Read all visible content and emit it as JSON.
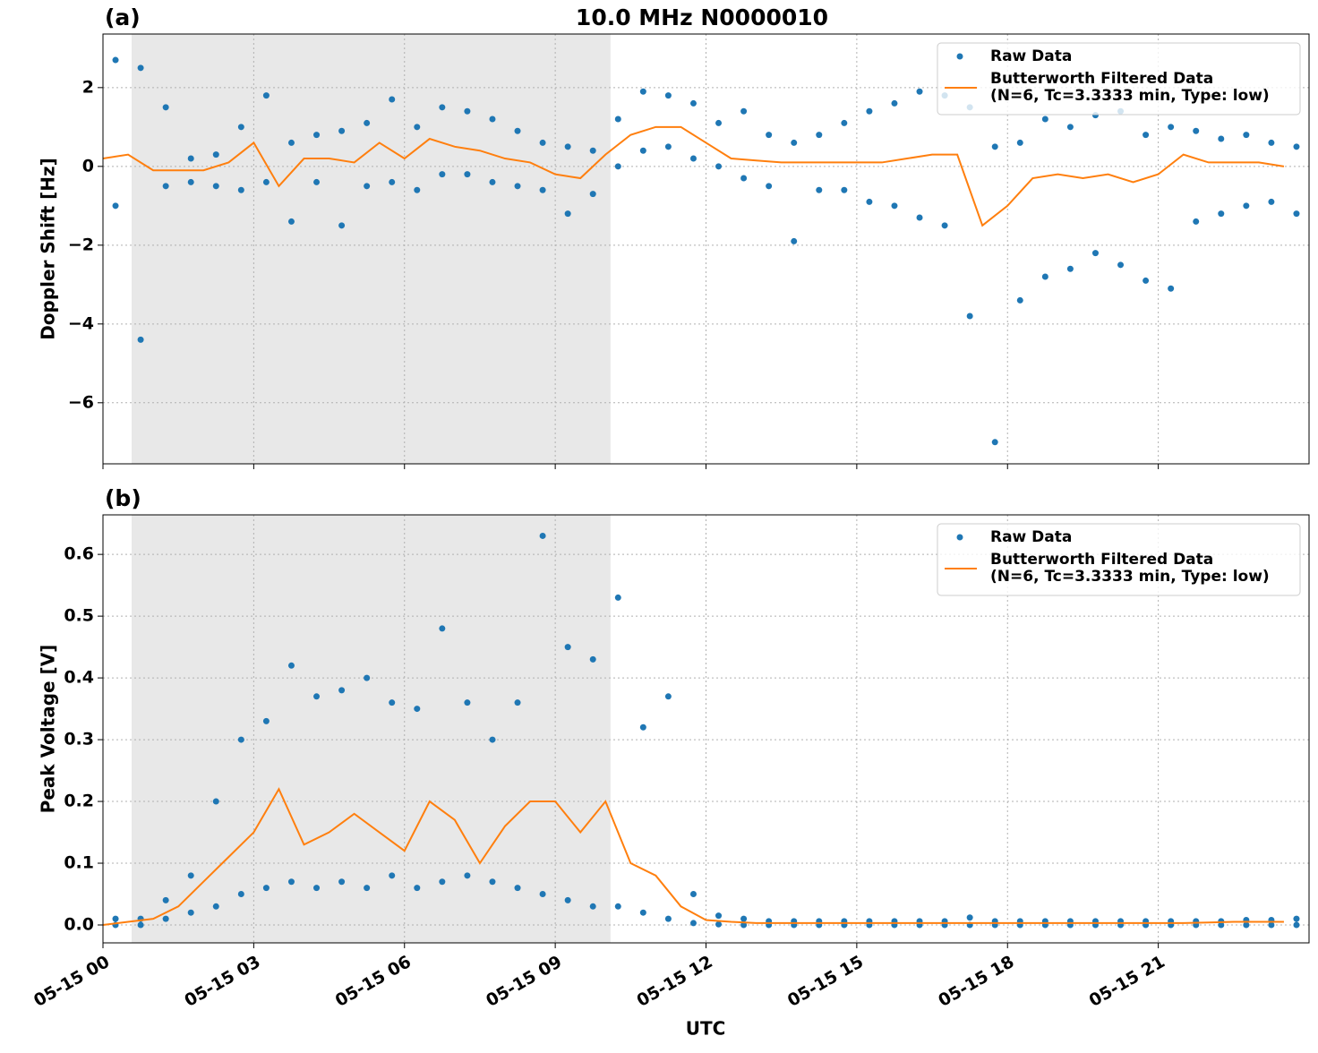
{
  "chart_data": [
    {
      "type": "line",
      "panel_label": "(a)",
      "title": "10.0 MHz N0000010",
      "ylabel": "Doppler Shift [Hz]",
      "xlim": [
        0,
        24
      ],
      "xticks": [
        0,
        3,
        6,
        9,
        12,
        15,
        18,
        21
      ],
      "show_xticklabels": false,
      "ylim": [
        -7.55,
        3.36
      ],
      "yticks": [
        {
          "value": -6,
          "label": "−6"
        },
        {
          "value": -4,
          "label": "−4"
        },
        {
          "value": -2,
          "label": "−2"
        },
        0,
        2
      ],
      "grid": true,
      "legend": "upper right",
      "shade": [
        0.57,
        10.1
      ],
      "shade_color": "#e8e8e8",
      "series": [
        {
          "name": [
            "Raw Data"
          ],
          "color": "#1f77b4",
          "mode": "markers",
          "x": [
            0.25,
            0.25,
            0.75,
            0.75,
            1.25,
            1.25,
            1.75,
            1.75,
            2.25,
            2.25,
            2.75,
            2.75,
            3.25,
            3.25,
            3.75,
            3.75,
            4.25,
            4.25,
            4.75,
            4.75,
            5.25,
            5.25,
            5.75,
            5.75,
            6.25,
            6.25,
            6.75,
            6.75,
            7.25,
            7.25,
            7.75,
            7.75,
            8.25,
            8.25,
            8.75,
            8.75,
            9.25,
            9.25,
            9.75,
            9.75,
            10.25,
            10.25,
            10.75,
            10.75,
            11.25,
            11.25,
            11.75,
            11.75,
            12.25,
            12.25,
            12.75,
            12.75,
            13.25,
            13.25,
            13.75,
            13.75,
            14.25,
            14.25,
            14.75,
            14.75,
            15.25,
            15.25,
            15.75,
            15.75,
            16.25,
            16.25,
            16.75,
            16.75,
            17.25,
            17.25,
            17.75,
            17.75,
            18.25,
            18.25,
            18.75,
            18.75,
            19.25,
            19.25,
            19.75,
            19.75,
            20.25,
            20.25,
            20.75,
            20.75,
            21.25,
            21.25,
            21.75,
            21.75,
            22.25,
            22.25,
            22.75,
            22.75,
            23.25,
            23.25,
            23.75,
            23.75
          ],
          "values": [
            2.7,
            -1.0,
            2.5,
            -4.4,
            1.5,
            -0.5,
            0.2,
            -0.4,
            0.3,
            -0.5,
            1.0,
            -0.6,
            1.8,
            -0.4,
            0.6,
            -1.4,
            0.8,
            -0.4,
            0.9,
            -1.5,
            1.1,
            -0.5,
            1.7,
            -0.4,
            1.0,
            -0.6,
            1.5,
            -0.2,
            1.4,
            -0.2,
            1.2,
            -0.4,
            0.9,
            -0.5,
            0.6,
            -0.6,
            0.5,
            -1.2,
            0.4,
            -0.7,
            1.2,
            0.0,
            1.9,
            0.4,
            1.8,
            0.5,
            1.6,
            0.2,
            1.1,
            0.0,
            1.4,
            -0.3,
            0.8,
            -0.5,
            0.6,
            -1.9,
            0.8,
            -0.6,
            1.1,
            -0.6,
            1.4,
            -0.9,
            1.6,
            -1.0,
            1.9,
            -1.3,
            1.8,
            -1.5,
            1.5,
            -3.8,
            0.5,
            -7.0,
            0.6,
            -3.4,
            1.2,
            -2.8,
            1.0,
            -2.6,
            1.3,
            -2.2,
            1.4,
            -2.5,
            0.8,
            -2.9,
            1.0,
            -3.1,
            0.9,
            -1.4,
            0.7,
            -1.2,
            0.8,
            -1.0,
            0.6,
            -0.9,
            0.5,
            -1.2
          ]
        },
        {
          "name": [
            "Butterworth Filtered Data",
            "(N=6, Tc=3.3333 min, Type: low)"
          ],
          "color": "#ff7f0e",
          "mode": "line",
          "x": [
            0,
            0.5,
            1,
            1.5,
            2,
            2.5,
            3,
            3.5,
            4,
            4.5,
            5,
            5.5,
            6,
            6.5,
            7,
            7.5,
            8,
            8.5,
            9,
            9.5,
            10,
            10.5,
            11,
            11.5,
            12,
            12.5,
            13,
            13.5,
            14,
            14.5,
            15,
            15.5,
            16,
            16.5,
            17,
            17.5,
            18,
            18.5,
            19,
            19.5,
            20,
            20.5,
            21,
            21.5,
            22,
            22.5,
            23,
            23.5
          ],
          "values": [
            0.2,
            0.3,
            -0.1,
            -0.1,
            -0.1,
            0.1,
            0.6,
            -0.5,
            0.2,
            0.2,
            0.1,
            0.6,
            0.2,
            0.7,
            0.5,
            0.4,
            0.2,
            0.1,
            -0.2,
            -0.3,
            0.3,
            0.8,
            1.0,
            1.0,
            0.6,
            0.2,
            0.15,
            0.1,
            0.1,
            0.1,
            0.1,
            0.1,
            0.2,
            0.3,
            0.3,
            -1.5,
            -1.0,
            -0.3,
            -0.2,
            -0.3,
            -0.2,
            -0.4,
            -0.2,
            0.3,
            0.1,
            0.1,
            0.1,
            0.0
          ]
        }
      ]
    },
    {
      "type": "line",
      "panel_label": "(b)",
      "ylabel": "Peak Voltage [V]",
      "xlabel": "UTC",
      "xlim": [
        0,
        24
      ],
      "xticks": [
        {
          "value": 0,
          "label": "05-15 00"
        },
        {
          "value": 3,
          "label": "05-15 03"
        },
        {
          "value": 6,
          "label": "05-15 06"
        },
        {
          "value": 9,
          "label": "05-15 09"
        },
        {
          "value": 12,
          "label": "05-15 12"
        },
        {
          "value": 15,
          "label": "05-15 15"
        },
        {
          "value": 18,
          "label": "05-15 18"
        },
        {
          "value": 21,
          "label": "05-15 21"
        }
      ],
      "show_xticklabels": true,
      "ylim": [
        -0.029,
        0.664
      ],
      "yticks": [
        {
          "value": 0,
          "label": "0.0"
        },
        {
          "value": 0.1,
          "label": "0.1"
        },
        {
          "value": 0.2,
          "label": "0.2"
        },
        {
          "value": 0.3,
          "label": "0.3"
        },
        {
          "value": 0.4,
          "label": "0.4"
        },
        {
          "value": 0.5,
          "label": "0.5"
        },
        {
          "value": 0.6,
          "label": "0.6"
        }
      ],
      "grid": true,
      "legend": "upper right",
      "shade": [
        0.57,
        10.1
      ],
      "shade_color": "#e8e8e8",
      "series": [
        {
          "name": [
            "Raw Data"
          ],
          "color": "#1f77b4",
          "mode": "markers",
          "x": [
            0.25,
            0.25,
            0.75,
            0.75,
            1.25,
            1.25,
            1.75,
            1.75,
            2.25,
            2.25,
            2.75,
            2.75,
            3.25,
            3.25,
            3.75,
            3.75,
            4.25,
            4.25,
            4.75,
            4.75,
            5.25,
            5.25,
            5.75,
            5.75,
            6.25,
            6.25,
            6.75,
            6.75,
            7.25,
            7.25,
            7.75,
            7.75,
            8.25,
            8.25,
            8.75,
            8.75,
            9.25,
            9.25,
            9.75,
            9.75,
            10.25,
            10.25,
            10.75,
            10.75,
            11.25,
            11.25,
            11.75,
            11.75,
            12.25,
            12.25,
            12.75,
            12.75,
            13.25,
            13.25,
            13.75,
            13.75,
            14.25,
            14.25,
            14.75,
            14.75,
            15.25,
            15.25,
            15.75,
            15.75,
            16.25,
            16.25,
            16.75,
            16.75,
            17.25,
            17.25,
            17.75,
            17.75,
            18.25,
            18.25,
            18.75,
            18.75,
            19.25,
            19.25,
            19.75,
            19.75,
            20.25,
            20.25,
            20.75,
            20.75,
            21.25,
            21.25,
            21.75,
            21.75,
            22.25,
            22.25,
            22.75,
            22.75,
            23.25,
            23.25,
            23.75,
            23.75
          ],
          "values": [
            0.01,
            0.0,
            0.01,
            0.0,
            0.04,
            0.01,
            0.08,
            0.02,
            0.2,
            0.03,
            0.3,
            0.05,
            0.33,
            0.06,
            0.42,
            0.07,
            0.37,
            0.06,
            0.38,
            0.07,
            0.4,
            0.06,
            0.36,
            0.08,
            0.35,
            0.06,
            0.48,
            0.07,
            0.36,
            0.08,
            0.3,
            0.07,
            0.36,
            0.06,
            0.63,
            0.05,
            0.45,
            0.04,
            0.43,
            0.03,
            0.53,
            0.03,
            0.32,
            0.02,
            0.37,
            0.01,
            0.05,
            0.003,
            0.015,
            0.001,
            0.01,
            0.0,
            0.006,
            0.0,
            0.006,
            0.0,
            0.006,
            0.0,
            0.006,
            0.0,
            0.006,
            0.0,
            0.006,
            0.0,
            0.006,
            0.0,
            0.006,
            0.0,
            0.012,
            0.0,
            0.006,
            0.0,
            0.006,
            0.0,
            0.006,
            0.0,
            0.006,
            0.0,
            0.006,
            0.0,
            0.006,
            0.0,
            0.006,
            0.0,
            0.006,
            0.0,
            0.006,
            0.0,
            0.006,
            0.0,
            0.008,
            0.0,
            0.008,
            0.0,
            0.01,
            0.0
          ]
        },
        {
          "name": [
            "Butterworth Filtered Data",
            "(N=6, Tc=3.3333 min, Type: low)"
          ],
          "color": "#ff7f0e",
          "mode": "line",
          "x": [
            0,
            0.5,
            1,
            1.5,
            2,
            2.5,
            3,
            3.5,
            4,
            4.5,
            5,
            5.5,
            6,
            6.5,
            7,
            7.5,
            8,
            8.5,
            9,
            9.5,
            10,
            10.5,
            11,
            11.5,
            12,
            12.5,
            13,
            13.5,
            14,
            14.5,
            15,
            15.5,
            16,
            16.5,
            17,
            17.5,
            18,
            18.5,
            19,
            19.5,
            20,
            20.5,
            21,
            21.5,
            22,
            22.5,
            23,
            23.5
          ],
          "values": [
            0.0,
            0.005,
            0.01,
            0.03,
            0.07,
            0.11,
            0.15,
            0.22,
            0.13,
            0.15,
            0.18,
            0.15,
            0.12,
            0.2,
            0.17,
            0.1,
            0.16,
            0.2,
            0.2,
            0.15,
            0.2,
            0.1,
            0.08,
            0.03,
            0.008,
            0.005,
            0.003,
            0.003,
            0.003,
            0.003,
            0.003,
            0.003,
            0.003,
            0.003,
            0.003,
            0.003,
            0.003,
            0.003,
            0.003,
            0.003,
            0.003,
            0.003,
            0.003,
            0.003,
            0.004,
            0.005,
            0.005,
            0.005
          ]
        }
      ]
    }
  ]
}
